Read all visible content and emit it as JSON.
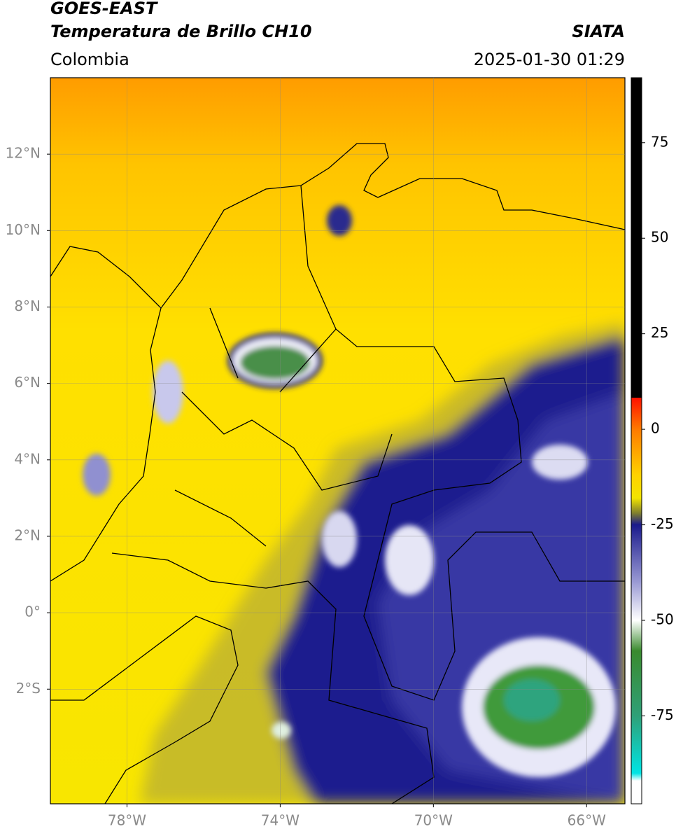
{
  "header": {
    "title": "GOES-EAST",
    "subtitle": "Temperatura de Brillo CH10",
    "source": "SIATA",
    "region": "Colombia",
    "timestamp": "2025-01-30 01:29"
  },
  "map": {
    "xlim": [
      -80,
      -65
    ],
    "ylim": [
      -5,
      14
    ],
    "xticks": [
      {
        "value": -78,
        "label": "78°W"
      },
      {
        "value": -74,
        "label": "74°W"
      },
      {
        "value": -70,
        "label": "70°W"
      },
      {
        "value": -66,
        "label": "66°W"
      }
    ],
    "yticks": [
      {
        "value": 12,
        "label": "12°N"
      },
      {
        "value": 10,
        "label": "10°N"
      },
      {
        "value": 8,
        "label": "8°N"
      },
      {
        "value": 6,
        "label": "6°N"
      },
      {
        "value": 4,
        "label": "4°N"
      },
      {
        "value": 2,
        "label": "2°N"
      },
      {
        "value": 0,
        "label": "0°"
      },
      {
        "value": -2,
        "label": "2°S"
      }
    ],
    "grid": true,
    "colorbar": {
      "lim": [
        -98,
        92
      ],
      "ticks": [
        75,
        50,
        25,
        0,
        -25,
        -50,
        -75
      ],
      "stops": [
        {
          "value": 92,
          "color": "#000000"
        },
        {
          "value": 8.3,
          "color": "#000000"
        },
        {
          "value": 8.3,
          "color": "#ff1000"
        },
        {
          "value": 0,
          "color": "#ff7a00"
        },
        {
          "value": -12,
          "color": "#ffd200"
        },
        {
          "value": -18,
          "color": "#f2e400"
        },
        {
          "value": -22,
          "color": "#7d7d30"
        },
        {
          "value": -25,
          "color": "#1a1a8c"
        },
        {
          "value": -40,
          "color": "#9a9ad4"
        },
        {
          "value": -50,
          "color": "#ffffff"
        },
        {
          "value": -58,
          "color": "#3a8a2e"
        },
        {
          "value": -75,
          "color": "#2fa078"
        },
        {
          "value": -90,
          "color": "#00e4e4"
        },
        {
          "value": -92,
          "color": "#ffffff"
        },
        {
          "value": -98,
          "color": "#ffffff"
        }
      ]
    }
  }
}
